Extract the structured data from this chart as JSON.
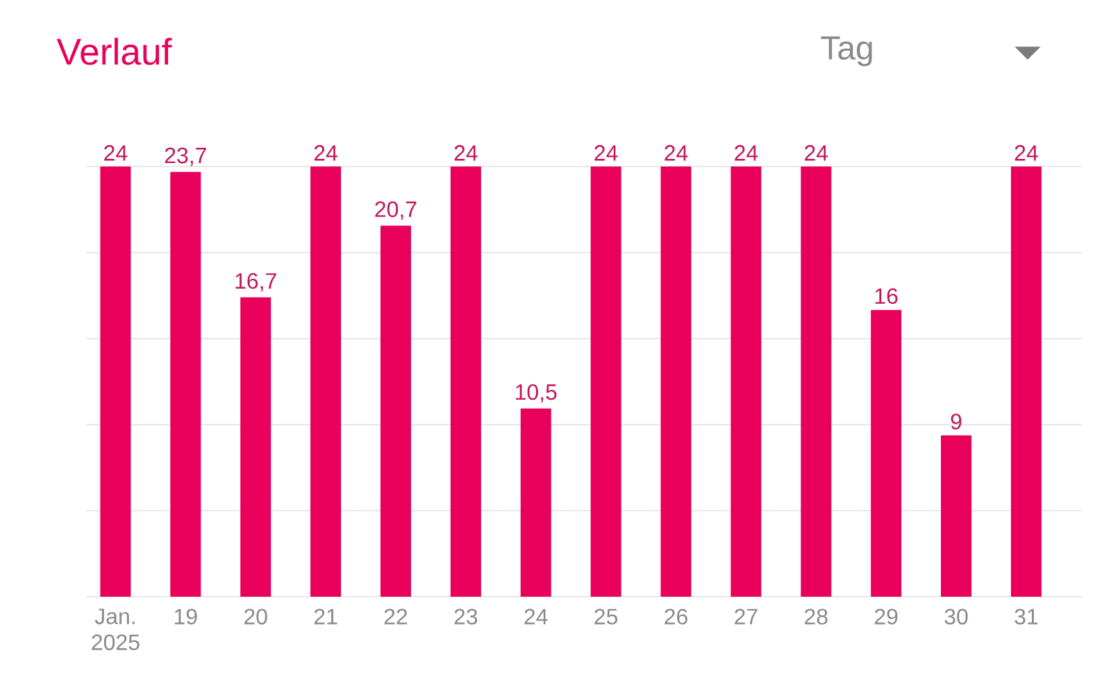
{
  "chart_data": {
    "type": "bar",
    "title": "Verlauf",
    "annotations": [
      "Tag"
    ],
    "categories": [
      "Jan. 2025",
      "19",
      "20",
      "21",
      "22",
      "23",
      "24",
      "25",
      "26",
      "27",
      "28",
      "29",
      "30",
      "31"
    ],
    "values": [
      24,
      23.7,
      16.7,
      24,
      20.7,
      24,
      10.5,
      24,
      24,
      24,
      24,
      16,
      9,
      24
    ],
    "value_labels": [
      "24",
      "23,7",
      "16,7",
      "24",
      "20,7",
      "24",
      "10,5",
      "24",
      "24",
      "24",
      "24",
      "16",
      "9",
      "24"
    ],
    "color": "#e8005a",
    "ylim": [
      0,
      24
    ],
    "yticks": [
      {
        "value": 0,
        "label": null
      },
      {
        "value": 4.8,
        "label": null
      },
      {
        "value": 9.6,
        "label": null
      },
      {
        "value": 14.4,
        "label": null
      },
      {
        "value": 19.2,
        "label": null
      },
      {
        "value": 24,
        "label": null
      }
    ],
    "grid": "y",
    "tick_labels": "x"
  }
}
